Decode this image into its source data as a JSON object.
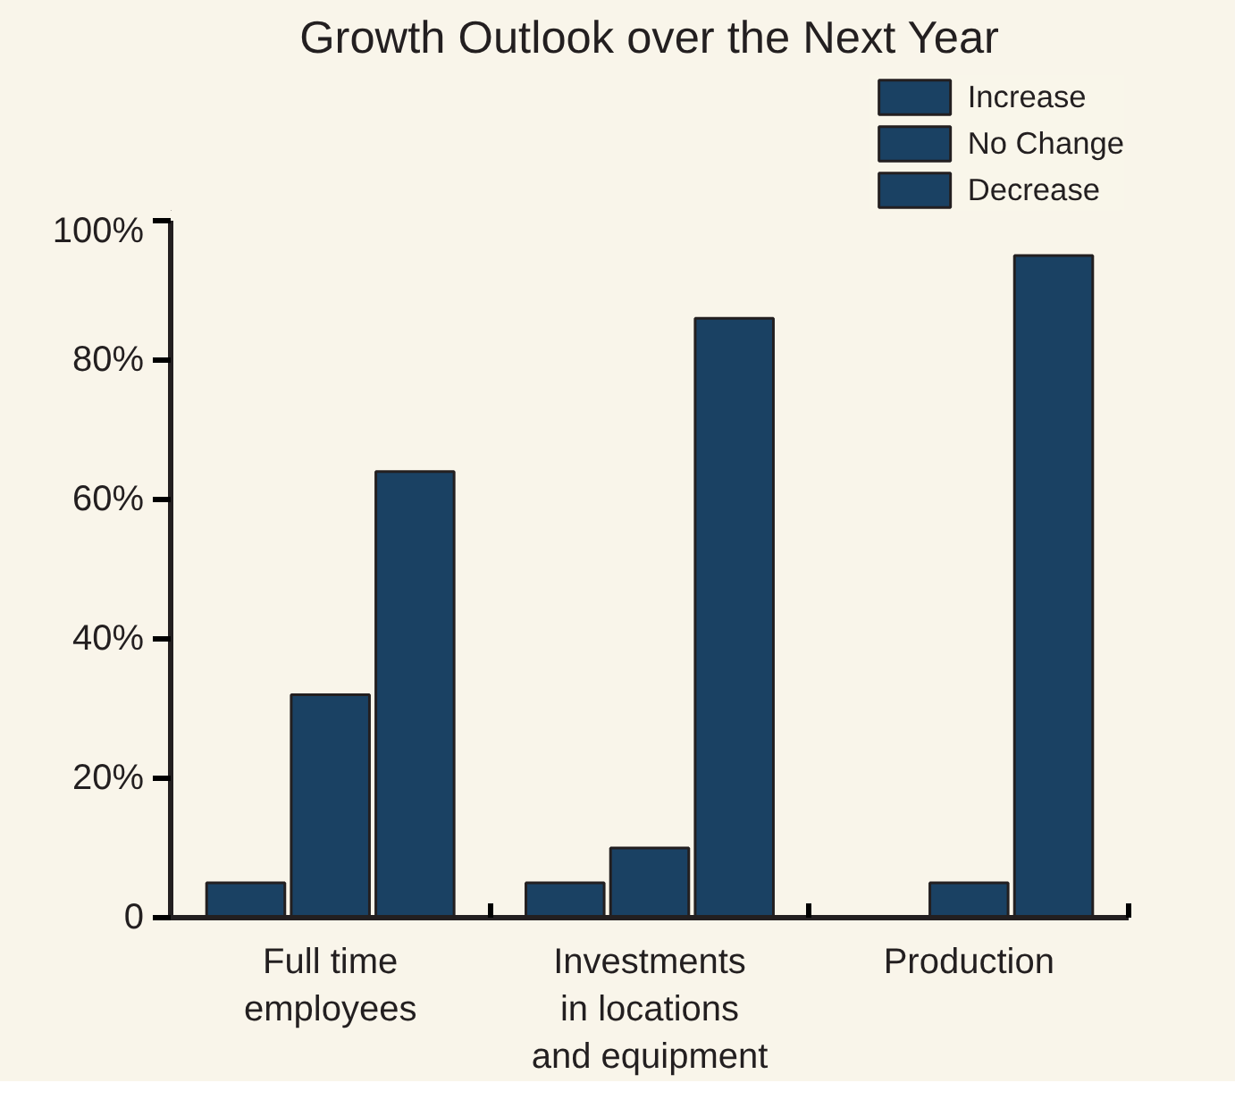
{
  "chart_data": {
    "type": "bar",
    "title": "Growth Outlook over the Next Year",
    "categories": [
      "Full time\nemployees",
      "Investments\nin locations\nand equipment",
      "Production"
    ],
    "series": [
      {
        "name": "Increase",
        "color": "#1a4163",
        "values": [
          5,
          5,
          null
        ]
      },
      {
        "name": "No Change",
        "color": "#1a4163",
        "values": [
          32,
          10,
          5
        ]
      },
      {
        "name": "Decrease",
        "color": "#1a4163",
        "values": [
          64,
          86,
          95
        ]
      }
    ],
    "ylim": [
      0,
      100
    ],
    "yticks": [
      {
        "value": 0,
        "label": "0"
      },
      {
        "value": 20,
        "label": "20%"
      },
      {
        "value": 40,
        "label": "40%"
      },
      {
        "value": 60,
        "label": "60%"
      },
      {
        "value": 80,
        "label": "80%"
      },
      {
        "value": 100,
        "label": "100%"
      }
    ],
    "grid": false,
    "legend": "top right"
  }
}
